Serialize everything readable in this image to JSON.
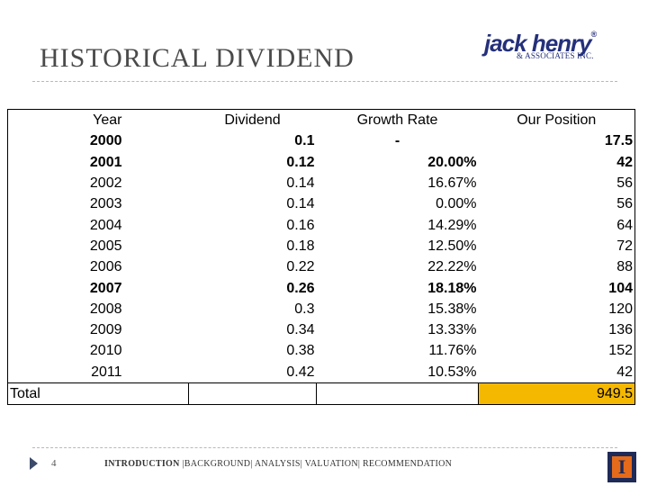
{
  "slide": {
    "title": "HISTORICAL DIVIDEND"
  },
  "logo": {
    "main": "jack henry",
    "registered": "®",
    "sub": "& ASSOCIATES INC."
  },
  "table": {
    "headers": [
      "Year",
      "Dividend",
      "Growth Rate",
      "Our Position"
    ],
    "rows": [
      {
        "year": "2000",
        "dividend": "0.1",
        "growth": "-",
        "position": "17.5",
        "bold": true
      },
      {
        "year": "2001",
        "dividend": "0.12",
        "growth": "20.00%",
        "position": "42",
        "bold": true
      },
      {
        "year": "2002",
        "dividend": "0.14",
        "growth": "16.67%",
        "position": "56",
        "bold": false
      },
      {
        "year": "2003",
        "dividend": "0.14",
        "growth": "0.00%",
        "position": "56",
        "bold": false
      },
      {
        "year": "2004",
        "dividend": "0.16",
        "growth": "14.29%",
        "position": "64",
        "bold": false
      },
      {
        "year": "2005",
        "dividend": "0.18",
        "growth": "12.50%",
        "position": "72",
        "bold": false
      },
      {
        "year": "2006",
        "dividend": "0.22",
        "growth": "22.22%",
        "position": "88",
        "bold": false
      },
      {
        "year": "2007",
        "dividend": "0.26",
        "growth": "18.18%",
        "position": "104",
        "bold": true
      },
      {
        "year": "2008",
        "dividend": "0.3",
        "growth": "15.38%",
        "position": "120",
        "bold": false
      },
      {
        "year": "2009",
        "dividend": "0.34",
        "growth": "13.33%",
        "position": "136",
        "bold": false
      },
      {
        "year": "2010",
        "dividend": "0.38",
        "growth": "11.76%",
        "position": "152",
        "bold": false
      },
      {
        "year": "2011",
        "dividend": "0.42",
        "growth": "10.53%",
        "position": "42",
        "bold": false
      }
    ],
    "total": {
      "label": "Total",
      "value": "949.5"
    },
    "highlight_color": "#f5b800"
  },
  "footer": {
    "page_number": "4",
    "nav": {
      "active": "INTRODUCTION",
      "items": [
        "BACKGROUND",
        "ANALYSIS",
        "VALUATION",
        "RECOMMENDATION"
      ]
    },
    "emblem": {
      "letter": "I",
      "icon": "university-emblem-icon"
    }
  }
}
